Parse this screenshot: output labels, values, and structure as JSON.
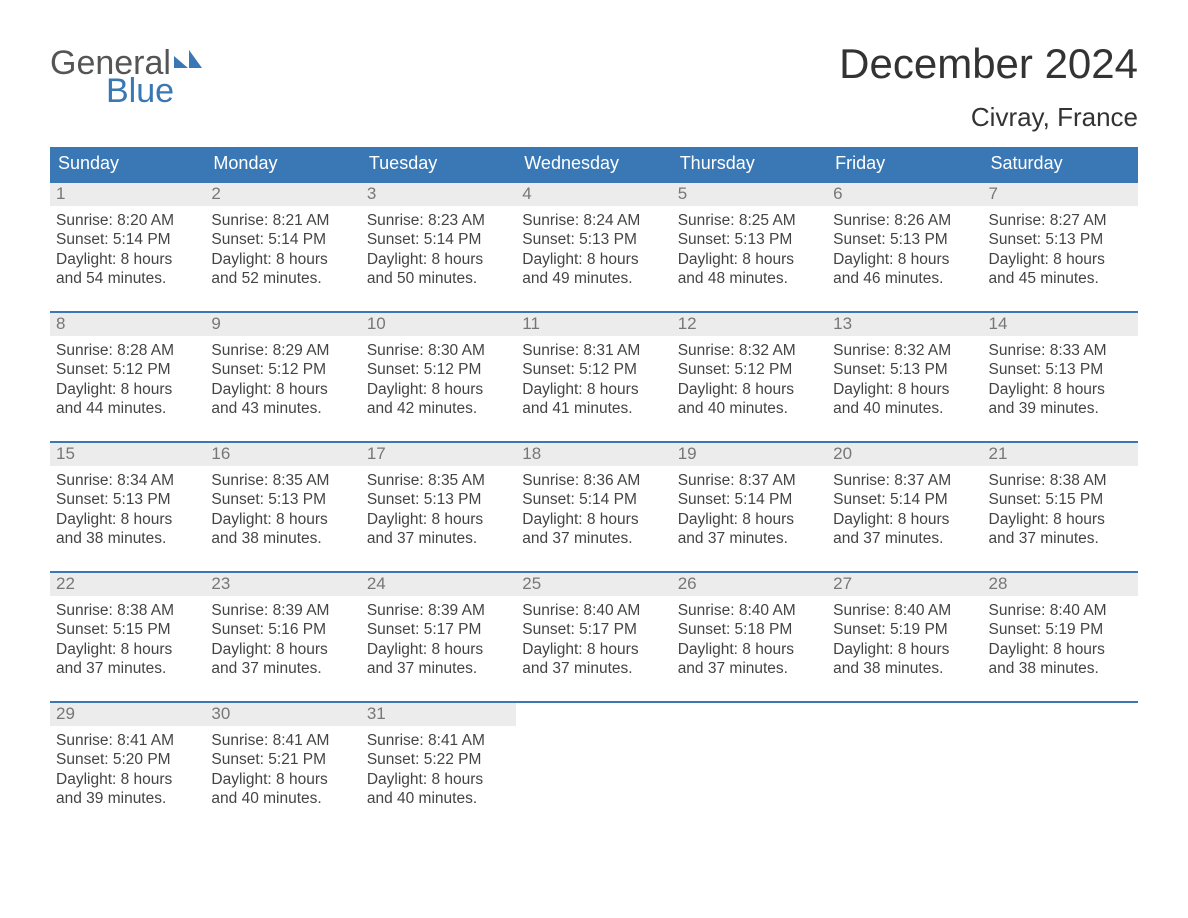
{
  "brand": {
    "name_top": "General",
    "name_bottom": "Blue",
    "color_top": "#555555",
    "color_bottom": "#3a78b5"
  },
  "title": "December 2024",
  "location": "Civray, France",
  "header_bg": "#3a78b5",
  "header_fg": "#ffffff",
  "daynum_bg": "#ececec",
  "daynum_fg": "#777777",
  "week_border": "#3a78b5",
  "body_fg": "#444444",
  "day_names": [
    "Sunday",
    "Monday",
    "Tuesday",
    "Wednesday",
    "Thursday",
    "Friday",
    "Saturday"
  ],
  "weeks": [
    [
      {
        "n": "1",
        "sunrise": "8:20 AM",
        "sunset": "5:14 PM",
        "daylight": "8 hours and 54 minutes."
      },
      {
        "n": "2",
        "sunrise": "8:21 AM",
        "sunset": "5:14 PM",
        "daylight": "8 hours and 52 minutes."
      },
      {
        "n": "3",
        "sunrise": "8:23 AM",
        "sunset": "5:14 PM",
        "daylight": "8 hours and 50 minutes."
      },
      {
        "n": "4",
        "sunrise": "8:24 AM",
        "sunset": "5:13 PM",
        "daylight": "8 hours and 49 minutes."
      },
      {
        "n": "5",
        "sunrise": "8:25 AM",
        "sunset": "5:13 PM",
        "daylight": "8 hours and 48 minutes."
      },
      {
        "n": "6",
        "sunrise": "8:26 AM",
        "sunset": "5:13 PM",
        "daylight": "8 hours and 46 minutes."
      },
      {
        "n": "7",
        "sunrise": "8:27 AM",
        "sunset": "5:13 PM",
        "daylight": "8 hours and 45 minutes."
      }
    ],
    [
      {
        "n": "8",
        "sunrise": "8:28 AM",
        "sunset": "5:12 PM",
        "daylight": "8 hours and 44 minutes."
      },
      {
        "n": "9",
        "sunrise": "8:29 AM",
        "sunset": "5:12 PM",
        "daylight": "8 hours and 43 minutes."
      },
      {
        "n": "10",
        "sunrise": "8:30 AM",
        "sunset": "5:12 PM",
        "daylight": "8 hours and 42 minutes."
      },
      {
        "n": "11",
        "sunrise": "8:31 AM",
        "sunset": "5:12 PM",
        "daylight": "8 hours and 41 minutes."
      },
      {
        "n": "12",
        "sunrise": "8:32 AM",
        "sunset": "5:12 PM",
        "daylight": "8 hours and 40 minutes."
      },
      {
        "n": "13",
        "sunrise": "8:32 AM",
        "sunset": "5:13 PM",
        "daylight": "8 hours and 40 minutes."
      },
      {
        "n": "14",
        "sunrise": "8:33 AM",
        "sunset": "5:13 PM",
        "daylight": "8 hours and 39 minutes."
      }
    ],
    [
      {
        "n": "15",
        "sunrise": "8:34 AM",
        "sunset": "5:13 PM",
        "daylight": "8 hours and 38 minutes."
      },
      {
        "n": "16",
        "sunrise": "8:35 AM",
        "sunset": "5:13 PM",
        "daylight": "8 hours and 38 minutes."
      },
      {
        "n": "17",
        "sunrise": "8:35 AM",
        "sunset": "5:13 PM",
        "daylight": "8 hours and 37 minutes."
      },
      {
        "n": "18",
        "sunrise": "8:36 AM",
        "sunset": "5:14 PM",
        "daylight": "8 hours and 37 minutes."
      },
      {
        "n": "19",
        "sunrise": "8:37 AM",
        "sunset": "5:14 PM",
        "daylight": "8 hours and 37 minutes."
      },
      {
        "n": "20",
        "sunrise": "8:37 AM",
        "sunset": "5:14 PM",
        "daylight": "8 hours and 37 minutes."
      },
      {
        "n": "21",
        "sunrise": "8:38 AM",
        "sunset": "5:15 PM",
        "daylight": "8 hours and 37 minutes."
      }
    ],
    [
      {
        "n": "22",
        "sunrise": "8:38 AM",
        "sunset": "5:15 PM",
        "daylight": "8 hours and 37 minutes."
      },
      {
        "n": "23",
        "sunrise": "8:39 AM",
        "sunset": "5:16 PM",
        "daylight": "8 hours and 37 minutes."
      },
      {
        "n": "24",
        "sunrise": "8:39 AM",
        "sunset": "5:17 PM",
        "daylight": "8 hours and 37 minutes."
      },
      {
        "n": "25",
        "sunrise": "8:40 AM",
        "sunset": "5:17 PM",
        "daylight": "8 hours and 37 minutes."
      },
      {
        "n": "26",
        "sunrise": "8:40 AM",
        "sunset": "5:18 PM",
        "daylight": "8 hours and 37 minutes."
      },
      {
        "n": "27",
        "sunrise": "8:40 AM",
        "sunset": "5:19 PM",
        "daylight": "8 hours and 38 minutes."
      },
      {
        "n": "28",
        "sunrise": "8:40 AM",
        "sunset": "5:19 PM",
        "daylight": "8 hours and 38 minutes."
      }
    ],
    [
      {
        "n": "29",
        "sunrise": "8:41 AM",
        "sunset": "5:20 PM",
        "daylight": "8 hours and 39 minutes."
      },
      {
        "n": "30",
        "sunrise": "8:41 AM",
        "sunset": "5:21 PM",
        "daylight": "8 hours and 40 minutes."
      },
      {
        "n": "31",
        "sunrise": "8:41 AM",
        "sunset": "5:22 PM",
        "daylight": "8 hours and 40 minutes."
      },
      {
        "empty": true
      },
      {
        "empty": true
      },
      {
        "empty": true
      },
      {
        "empty": true
      }
    ]
  ],
  "labels": {
    "sunrise": "Sunrise: ",
    "sunset": "Sunset: ",
    "daylight": "Daylight: "
  }
}
